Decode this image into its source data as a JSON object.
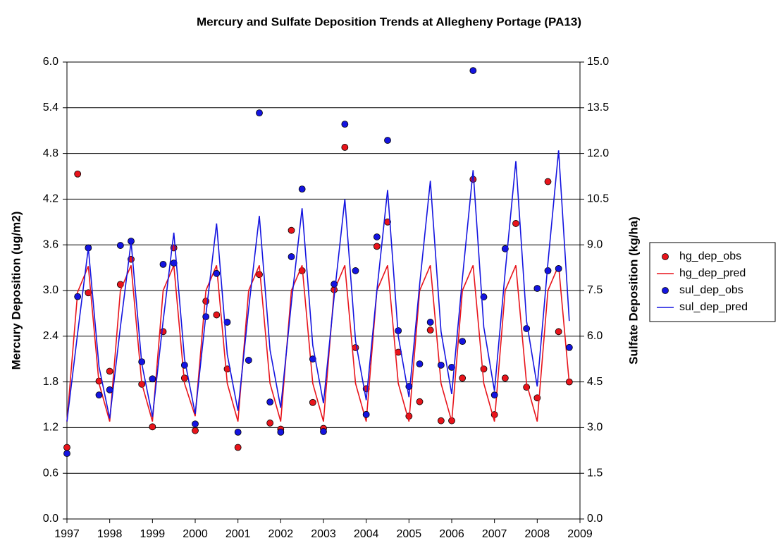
{
  "chart_data": {
    "type": "line",
    "title": "Mercury and Sulfate Deposition Trends at Allegheny Portage (PA13)",
    "y_label": "Mercury Deposition (ug/m2)",
    "y2_label": "Sulfate Deposition (kg/ha)",
    "x": [
      1997,
      1997.25,
      1997.5,
      1997.75,
      1998,
      1998.25,
      1998.5,
      1998.75,
      1999,
      1999.25,
      1999.5,
      1999.75,
      2000,
      2000.25,
      2000.5,
      2000.75,
      2001,
      2001.25,
      2001.5,
      2001.75,
      2002,
      2002.25,
      2002.5,
      2002.75,
      2003,
      2003.25,
      2003.5,
      2003.75,
      2004,
      2004.25,
      2004.5,
      2004.75,
      2005,
      2005.25,
      2005.5,
      2005.75,
      2006,
      2006.25,
      2006.5,
      2006.75,
      2007,
      2007.25,
      2007.5,
      2007.75,
      2008,
      2008.25,
      2008.5,
      2008.75
    ],
    "series": [
      {
        "name": "hg_dep_obs",
        "style": "marker",
        "color": "#e8141b",
        "axis": "y",
        "values": [
          0.94,
          4.53,
          2.97,
          1.81,
          1.94,
          3.08,
          3.41,
          1.77,
          1.21,
          2.46,
          3.56,
          1.85,
          1.16,
          2.86,
          2.68,
          1.97,
          0.94,
          null,
          3.21,
          1.26,
          1.18,
          3.79,
          3.26,
          1.53,
          1.19,
          3.01,
          4.88,
          2.25,
          1.71,
          3.58,
          3.9,
          2.19,
          1.35,
          1.54,
          2.48,
          1.29,
          1.29,
          1.85,
          4.46,
          1.97,
          1.37,
          1.85,
          3.88,
          1.73,
          1.59,
          4.43,
          2.46,
          1.8
        ]
      },
      {
        "name": "hg_dep_pred",
        "style": "line",
        "color": "#e8141b",
        "axis": "y",
        "values": [
          1.28,
          2.98,
          3.32,
          1.78,
          1.28,
          3.0,
          3.33,
          1.78,
          1.28,
          3.0,
          3.33,
          1.78,
          1.35,
          3.0,
          3.33,
          1.78,
          1.28,
          3.0,
          3.33,
          1.78,
          1.28,
          3.0,
          3.33,
          1.78,
          1.28,
          3.0,
          3.33,
          1.78,
          1.28,
          3.0,
          3.33,
          1.78,
          1.28,
          3.0,
          3.33,
          1.78,
          1.28,
          3.0,
          3.33,
          1.78,
          1.28,
          3.0,
          3.33,
          1.78,
          1.28,
          3.0,
          3.33,
          1.78
        ]
      },
      {
        "name": "sul_dep_obs",
        "style": "marker",
        "color": "#1414e0",
        "axis": "y2",
        "values": [
          2.15,
          7.3,
          8.9,
          4.07,
          4.24,
          8.98,
          9.12,
          5.16,
          4.6,
          8.36,
          8.4,
          5.05,
          3.12,
          6.64,
          8.06,
          6.46,
          2.85,
          5.21,
          13.33,
          3.84,
          2.85,
          8.61,
          10.83,
          5.25,
          2.87,
          7.71,
          12.96,
          8.15,
          3.43,
          9.26,
          12.43,
          6.18,
          4.35,
          5.09,
          6.46,
          5.05,
          4.98,
          5.83,
          14.72,
          7.29,
          4.07,
          8.87,
          null,
          6.25,
          7.57,
          8.15,
          8.22,
          5.63
        ]
      },
      {
        "name": "sul_dep_pred",
        "style": "line",
        "color": "#1414e0",
        "axis": "y2",
        "values": [
          3.2,
          6.1,
          8.9,
          5.0,
          3.3,
          6.3,
          9.1,
          5.1,
          3.35,
          6.5,
          9.4,
          5.25,
          3.45,
          6.7,
          9.7,
          5.4,
          3.55,
          6.9,
          9.95,
          5.55,
          3.65,
          7.1,
          10.2,
          5.7,
          3.8,
          7.3,
          10.5,
          5.85,
          3.9,
          7.5,
          10.8,
          6.0,
          4.0,
          7.7,
          11.1,
          6.15,
          4.1,
          7.9,
          11.45,
          6.3,
          4.2,
          8.1,
          11.75,
          6.5,
          4.35,
          8.4,
          12.1,
          6.5
        ]
      }
    ],
    "xlim": [
      1997,
      2009
    ],
    "xticks": [
      1997,
      1998,
      1999,
      2000,
      2001,
      2002,
      2003,
      2004,
      2005,
      2006,
      2007,
      2008,
      2009
    ],
    "ylim": [
      0,
      6
    ],
    "yticks": [
      {
        "value": 0,
        "label": "0.0"
      },
      0.6,
      1.2,
      1.8,
      2.4,
      {
        "value": 3,
        "label": "3.0"
      },
      3.6,
      4.2,
      4.8,
      5.4,
      {
        "value": 6,
        "label": "6.0"
      }
    ],
    "y2lim": [
      0,
      15
    ],
    "y2ticks": [
      {
        "value": 0,
        "label": "0.0"
      },
      1.5,
      {
        "value": 3,
        "label": "3.0"
      },
      4.5,
      {
        "value": 6,
        "label": "6.0"
      },
      7.5,
      {
        "value": 9,
        "label": "9.0"
      },
      10.5,
      {
        "value": 12,
        "label": "12.0"
      },
      13.5,
      {
        "value": 15,
        "label": "15.0"
      }
    ],
    "grid": true,
    "legend": "right"
  }
}
